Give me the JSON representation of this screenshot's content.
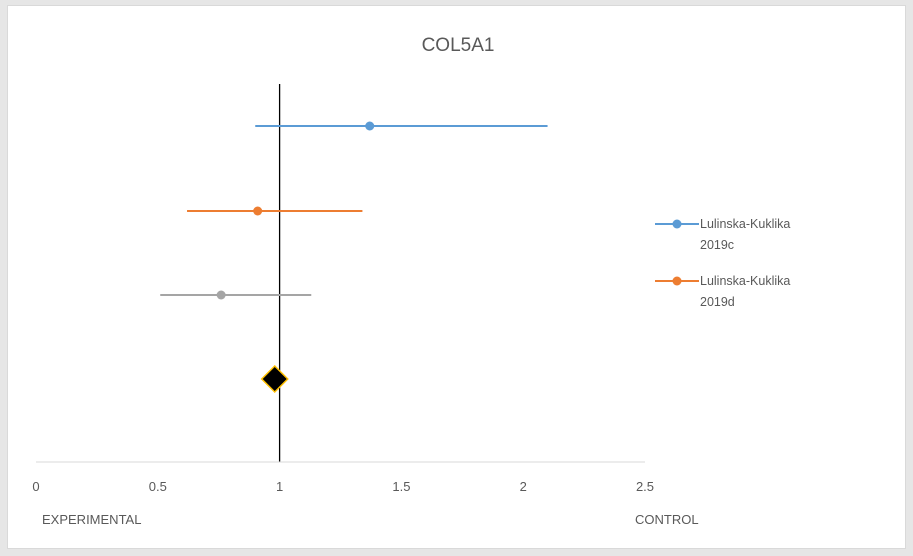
{
  "chart_data": {
    "type": "scatter",
    "title": "COL5A1",
    "xlim": [
      0,
      2.5
    ],
    "x_ticks": [
      {
        "value": 0,
        "label": "0"
      },
      {
        "value": 0.5,
        "label": "0.5"
      },
      {
        "value": 1,
        "label": "1"
      },
      {
        "value": 1.5,
        "label": "1.5"
      },
      {
        "value": 2,
        "label": "2"
      },
      {
        "value": 2.5,
        "label": "2.5"
      }
    ],
    "left_label": "EXPERIMENTAL",
    "right_label": "CONTROL",
    "reference_line": 1,
    "series": [
      {
        "name": "Lulinska-Kuklika 2019c",
        "color": "#5b9bd5",
        "estimate": 1.37,
        "ci": [
          0.9,
          2.1
        ]
      },
      {
        "name": "Lulinska-Kuklika 2019d",
        "color": "#ed7d31",
        "estimate": 0.91,
        "ci": [
          0.62,
          1.34
        ]
      },
      {
        "name": "",
        "color": "#a5a5a5",
        "estimate": 0.76,
        "ci": [
          0.51,
          1.13
        ]
      }
    ],
    "pooled": {
      "estimate": 0.98,
      "marker": "diamond",
      "fill": "#000000",
      "stroke": "#ffc000"
    },
    "grid": false,
    "legend_position": "right"
  },
  "legend": {
    "items": [
      {
        "line1": "Lulinska-Kuklika",
        "line2": "2019c",
        "color": "#5b9bd5"
      },
      {
        "line1": "Lulinska-Kuklika",
        "line2": "2019d",
        "color": "#ed7d31"
      }
    ]
  }
}
